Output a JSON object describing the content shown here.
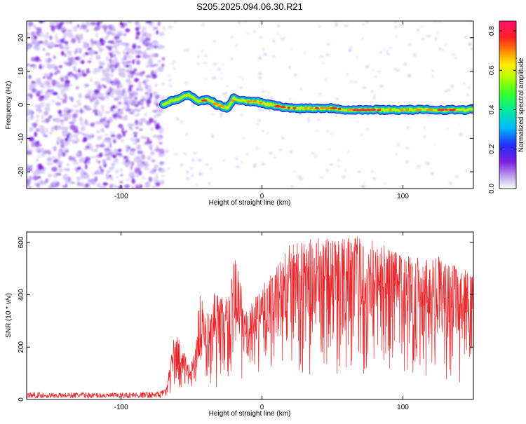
{
  "title": "S205.2025.094.06.30.R21",
  "colors": {
    "snr_line": "#e8262b",
    "spectrum_low": "#c8b4f2",
    "spectrum_mid": "#7a1fe0",
    "axis": "#000000"
  },
  "chart_data": [
    {
      "type": "heatmap",
      "xlabel": "Height of straight line (km)",
      "ylabel": "Frequency (Hz)",
      "xlim": [
        -167,
        150
      ],
      "ylim": [
        -25,
        25
      ],
      "xticks": [
        -100,
        0,
        100
      ],
      "yticks": [
        -20,
        -10,
        0,
        10,
        20
      ],
      "grid": false,
      "colorbar": {
        "label": "Normalized spectral amplitude",
        "range": [
          0,
          0.85
        ],
        "ticks": [
          "0.0",
          "0.2",
          "0.4",
          "0.6",
          "0.8"
        ]
      },
      "noise_region_x": [
        -167,
        -70
      ],
      "ridge": {
        "x": [
          -70,
          -65,
          -58,
          -52,
          -45,
          -38,
          -32,
          -28,
          -24,
          -20,
          -16,
          -10,
          -4,
          0,
          6,
          12,
          20,
          30,
          40,
          50,
          60,
          70,
          80,
          90,
          100,
          110,
          120,
          130,
          140,
          150
        ],
        "y": [
          0,
          1,
          2,
          3,
          1,
          1.5,
          0,
          -0.5,
          -1,
          2,
          1.5,
          1,
          1,
          0.5,
          0,
          -0.5,
          -1,
          -1,
          -1,
          -1,
          -1.5,
          -1.5,
          -1.5,
          -1.5,
          -1.5,
          -1.5,
          -1.5,
          -1.5,
          -1.5,
          -1.5
        ]
      }
    },
    {
      "type": "line",
      "xlabel": "Height of straight line (km)",
      "ylabel": "SNR (10 * v/v)",
      "xlim": [
        -167,
        150
      ],
      "ylim": [
        0,
        640
      ],
      "xticks": [
        -100,
        0,
        100
      ],
      "yticks": [
        0,
        200,
        400,
        600
      ],
      "grid": false,
      "series": [
        {
          "x": [
            -167,
            -150,
            -130,
            -110,
            -90,
            -75,
            -68,
            -62,
            -57,
            -52,
            -48,
            -44,
            -40,
            -35,
            -30,
            -24,
            -18,
            -12,
            -6,
            0,
            6,
            12,
            20,
            30,
            40,
            50,
            60,
            70,
            80,
            90,
            100,
            110,
            120,
            130,
            140,
            150
          ],
          "y_low": [
            5,
            5,
            5,
            5,
            5,
            5,
            5,
            10,
            20,
            25,
            20,
            30,
            25,
            35,
            40,
            30,
            40,
            40,
            60,
            80,
            70,
            60,
            60,
            60,
            60,
            55,
            60,
            60,
            60,
            60,
            60,
            60,
            55,
            55,
            50,
            50
          ],
          "y_high": [
            30,
            25,
            28,
            25,
            28,
            30,
            40,
            260,
            210,
            130,
            180,
            430,
            300,
            420,
            400,
            390,
            580,
            330,
            380,
            430,
            490,
            540,
            600,
            610,
            620,
            620,
            630,
            625,
            615,
            580,
            560,
            560,
            560,
            540,
            500,
            490
          ]
        }
      ]
    }
  ]
}
